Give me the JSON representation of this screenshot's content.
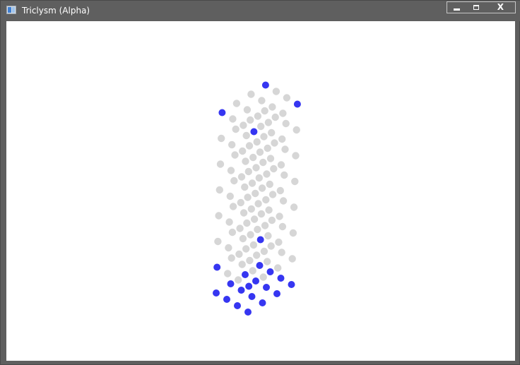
{
  "window": {
    "title": "Triclysm (Alpha)",
    "icon": "app-window-icon",
    "controls": {
      "minimize_icon": "minimize-icon",
      "maximize_icon": "maximize-icon",
      "close_label": "X"
    }
  },
  "colors": {
    "titlebar": "#5f5f5f",
    "canvas": "#ffffff",
    "voxel_off": "#b4b4b4",
    "voxel_on": "#2b2bf0"
  },
  "cube": {
    "layers": 8,
    "rows": 4,
    "cols": 4,
    "lit_voxels": [
      [
        0,
        0,
        0
      ],
      [
        0,
        0,
        1
      ],
      [
        0,
        0,
        2
      ],
      [
        0,
        0,
        3
      ],
      [
        0,
        1,
        0
      ],
      [
        0,
        1,
        1
      ],
      [
        0,
        1,
        2
      ],
      [
        0,
        1,
        3
      ],
      [
        0,
        2,
        0
      ],
      [
        0,
        2,
        1
      ],
      [
        0,
        2,
        2
      ],
      [
        0,
        2,
        3
      ],
      [
        0,
        3,
        0
      ],
      [
        0,
        3,
        1
      ],
      [
        0,
        3,
        2
      ],
      [
        0,
        3,
        3
      ],
      [
        1,
        0,
        0
      ],
      [
        1,
        3,
        0
      ],
      [
        1,
        3,
        3
      ],
      [
        7,
        0,
        0
      ],
      [
        7,
        0,
        3
      ],
      [
        7,
        3,
        0
      ],
      [
        7,
        3,
        3
      ]
    ]
  }
}
